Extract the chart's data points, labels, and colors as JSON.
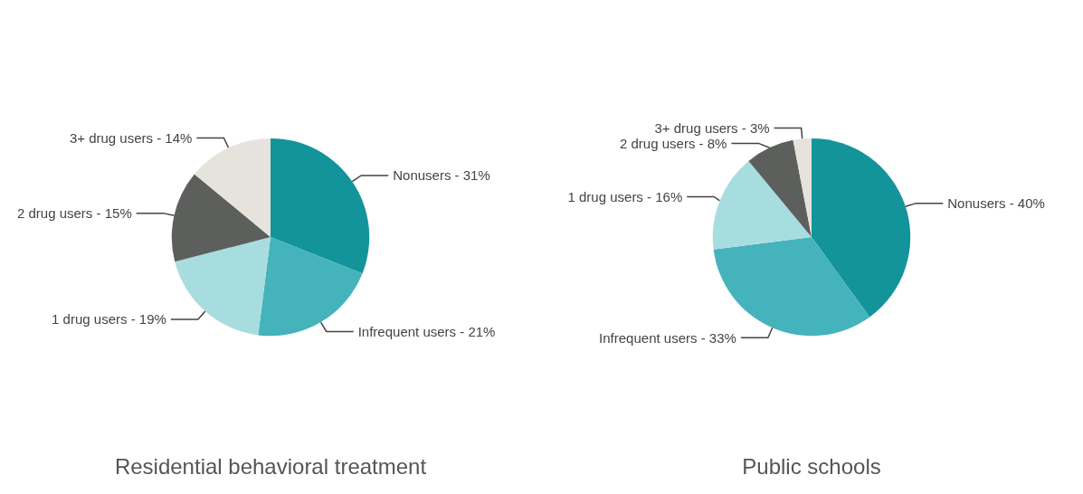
{
  "chart_data": [
    {
      "type": "pie",
      "title": "Residential behavioral treatment",
      "categories": [
        "Nonusers",
        "Infrequent users",
        "1 drug users",
        "2 drug users",
        "3+ drug users"
      ],
      "values": [
        31,
        21,
        19,
        15,
        14
      ],
      "colors": [
        "#12949a",
        "#45b3bb",
        "#a8dde0",
        "#5d5f5c",
        "#e5e3dc"
      ],
      "value_labels": [
        "31%",
        "21%",
        "19%",
        "15%",
        "14%"
      ]
    },
    {
      "type": "pie",
      "title": "Public schools",
      "categories": [
        "Nonusers",
        "Infrequent users",
        "1 drug users",
        "2 drug users",
        "3+ drug users"
      ],
      "values": [
        40,
        33,
        16,
        8,
        3
      ],
      "colors": [
        "#12949a",
        "#45b3bb",
        "#a8dde0",
        "#5d5f5c",
        "#e5e3dc"
      ],
      "value_labels": [
        "40%",
        "33%",
        "16%",
        "8%",
        "3%"
      ]
    }
  ]
}
